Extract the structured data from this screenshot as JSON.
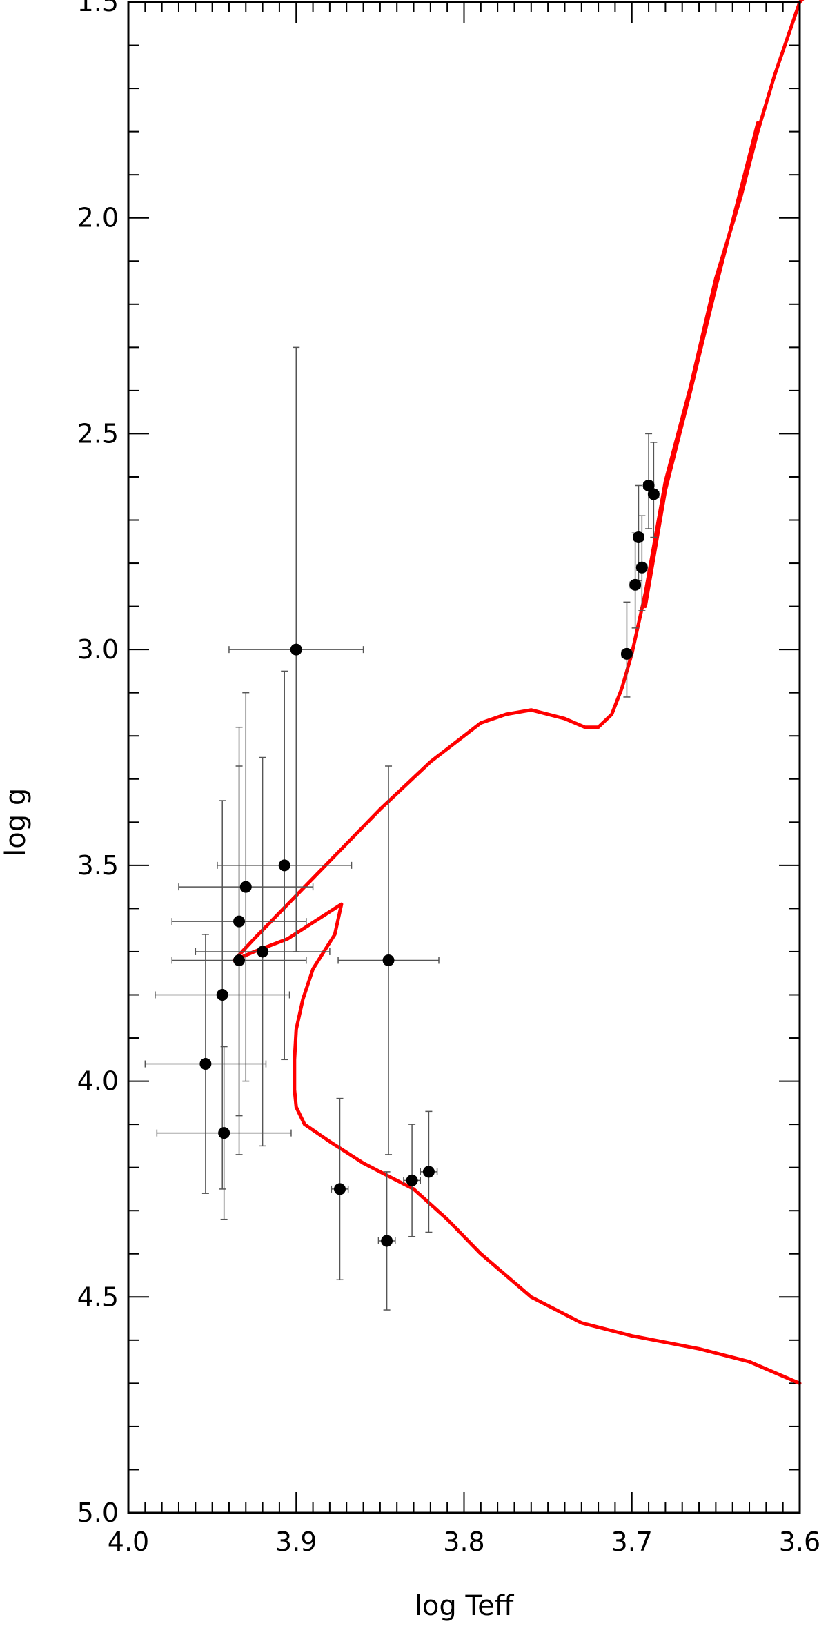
{
  "chart_data": {
    "type": "scatter",
    "title": "",
    "xlabel": "log Teff",
    "ylabel": "log g",
    "xlim": [
      4.0,
      3.6
    ],
    "ylim": [
      5.0,
      1.5
    ],
    "x_reversed": true,
    "y_reversed": true,
    "grid": false,
    "x_ticks": [
      "4.0",
      "3.9",
      "3.8",
      "3.7",
      "3.6"
    ],
    "y_ticks": [
      "1.5",
      "2.0",
      "2.5",
      "3.0",
      "3.5",
      "4.0",
      "4.5",
      "5.0"
    ],
    "x_tick_values": [
      4.0,
      3.9,
      3.8,
      3.7,
      3.6
    ],
    "y_tick_values": [
      1.5,
      2.0,
      2.5,
      3.0,
      3.5,
      4.0,
      4.5,
      5.0
    ],
    "colors": {
      "points": "#000000",
      "errorbars": "#555555",
      "track": "#ff0000"
    },
    "points": [
      {
        "x": 3.9,
        "y": 3.0,
        "xerr": 0.04,
        "yerr_low": 0.7,
        "yerr_high": 0.7
      },
      {
        "x": 3.907,
        "y": 3.5,
        "xerr": 0.04,
        "yerr_low": 0.45,
        "yerr_high": 0.45
      },
      {
        "x": 3.93,
        "y": 3.55,
        "xerr": 0.04,
        "yerr_low": 0.45,
        "yerr_high": 0.45
      },
      {
        "x": 3.934,
        "y": 3.63,
        "xerr": 0.04,
        "yerr_low": 0.45,
        "yerr_high": 0.45
      },
      {
        "x": 3.92,
        "y": 3.7,
        "xerr": 0.04,
        "yerr_low": 0.45,
        "yerr_high": 0.45
      },
      {
        "x": 3.934,
        "y": 3.72,
        "xerr": 0.04,
        "yerr_low": 0.45,
        "yerr_high": 0.45
      },
      {
        "x": 3.944,
        "y": 3.8,
        "xerr": 0.04,
        "yerr_low": 0.45,
        "yerr_high": 0.45
      },
      {
        "x": 3.954,
        "y": 3.96,
        "xerr": 0.036,
        "yerr_low": 0.3,
        "yerr_high": 0.3
      },
      {
        "x": 3.943,
        "y": 4.12,
        "xerr": 0.04,
        "yerr_low": 0.2,
        "yerr_high": 0.2
      },
      {
        "x": 3.845,
        "y": 3.72,
        "xerr": 0.03,
        "yerr_low": 0.45,
        "yerr_high": 0.45
      },
      {
        "x": 3.874,
        "y": 4.25,
        "xerr": 0.005,
        "yerr_low": 0.21,
        "yerr_high": 0.21
      },
      {
        "x": 3.846,
        "y": 4.37,
        "xerr": 0.005,
        "yerr_low": 0.16,
        "yerr_high": 0.16
      },
      {
        "x": 3.831,
        "y": 4.23,
        "xerr": 0.005,
        "yerr_low": 0.13,
        "yerr_high": 0.13
      },
      {
        "x": 3.821,
        "y": 4.21,
        "xerr": 0.005,
        "yerr_low": 0.14,
        "yerr_high": 0.14
      },
      {
        "x": 3.703,
        "y": 3.01,
        "xerr": 0.003,
        "yerr_low": 0.12,
        "yerr_high": 0.1
      },
      {
        "x": 3.698,
        "y": 2.85,
        "xerr": 0.003,
        "yerr_low": 0.12,
        "yerr_high": 0.1
      },
      {
        "x": 3.694,
        "y": 2.81,
        "xerr": 0.003,
        "yerr_low": 0.12,
        "yerr_high": 0.1
      },
      {
        "x": 3.696,
        "y": 2.74,
        "xerr": 0.003,
        "yerr_low": 0.12,
        "yerr_high": 0.1
      },
      {
        "x": 3.687,
        "y": 2.64,
        "xerr": 0.003,
        "yerr_low": 0.12,
        "yerr_high": 0.1
      },
      {
        "x": 3.69,
        "y": 2.62,
        "xerr": 0.003,
        "yerr_low": 0.12,
        "yerr_high": 0.1
      }
    ],
    "tracks": [
      {
        "x": [
          3.6,
          3.63,
          3.66,
          3.7,
          3.73,
          3.76,
          3.79,
          3.81,
          3.83,
          3.845,
          3.86,
          3.88,
          3.895,
          3.9,
          3.901,
          3.901,
          3.9,
          3.896,
          3.89,
          3.877,
          3.873,
          3.885,
          3.905,
          3.925,
          3.937,
          3.925,
          3.905,
          3.88,
          3.85,
          3.82,
          3.79,
          3.775,
          3.76,
          3.74,
          3.728,
          3.72,
          3.712,
          3.706,
          3.7,
          3.692,
          3.68,
          3.665,
          3.65,
          3.635,
          3.625,
          3.615,
          3.6,
          3.595
        ],
        "y": [
          4.7,
          4.65,
          4.62,
          4.59,
          4.56,
          4.5,
          4.4,
          4.32,
          4.25,
          4.22,
          4.19,
          4.14,
          4.1,
          4.06,
          4.02,
          3.95,
          3.88,
          3.81,
          3.74,
          3.66,
          3.59,
          3.62,
          3.67,
          3.7,
          3.72,
          3.67,
          3.59,
          3.49,
          3.37,
          3.26,
          3.17,
          3.15,
          3.14,
          3.16,
          3.18,
          3.18,
          3.15,
          3.09,
          3.01,
          2.87,
          2.61,
          2.39,
          2.14,
          1.95,
          1.8,
          1.67,
          1.5,
          1.48
        ]
      },
      {
        "x": [
          3.692,
          3.68,
          3.665,
          3.65,
          3.625
        ],
        "y": [
          2.9,
          2.63,
          2.4,
          2.16,
          1.78
        ]
      }
    ]
  }
}
